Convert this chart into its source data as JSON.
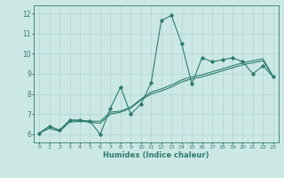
{
  "xlabel": "Humidex (Indice chaleur)",
  "xlim": [
    -0.5,
    23.5
  ],
  "ylim": [
    5.6,
    12.4
  ],
  "xticks": [
    0,
    1,
    2,
    3,
    4,
    5,
    6,
    7,
    8,
    9,
    10,
    11,
    12,
    13,
    14,
    15,
    16,
    17,
    18,
    19,
    20,
    21,
    22,
    23
  ],
  "yticks": [
    6,
    7,
    8,
    9,
    10,
    11,
    12
  ],
  "line_color": "#2d7d6f",
  "bg_color": "#cce8e5",
  "grid_color": "#afd4d0",
  "line1_x": [
    0,
    1,
    2,
    3,
    4,
    5,
    6,
    7,
    8,
    9,
    10,
    11,
    12,
    13,
    14,
    15,
    16,
    17,
    18,
    19,
    20,
    21,
    22,
    23
  ],
  "line1_y": [
    6.05,
    6.4,
    6.2,
    6.7,
    6.7,
    6.65,
    6.0,
    7.3,
    8.35,
    7.0,
    7.5,
    8.55,
    11.65,
    11.9,
    10.5,
    8.5,
    9.8,
    9.6,
    9.7,
    9.8,
    9.6,
    9.0,
    9.4,
    8.85
  ],
  "line2_x": [
    0,
    1,
    2,
    3,
    4,
    5,
    6,
    7,
    8,
    9,
    10,
    11,
    12,
    13,
    14,
    15,
    16,
    17,
    18,
    19,
    20,
    21,
    22,
    23
  ],
  "line2_y": [
    6.05,
    6.4,
    6.2,
    6.7,
    6.7,
    6.65,
    6.65,
    7.1,
    7.15,
    7.35,
    7.75,
    8.1,
    8.25,
    8.45,
    8.7,
    8.85,
    8.95,
    9.1,
    9.25,
    9.4,
    9.55,
    9.65,
    9.75,
    8.85
  ],
  "line3_x": [
    0,
    1,
    2,
    3,
    4,
    5,
    6,
    7,
    8,
    9,
    10,
    11,
    12,
    13,
    14,
    15,
    16,
    17,
    18,
    19,
    20,
    21,
    22,
    23
  ],
  "line3_y": [
    6.05,
    6.3,
    6.15,
    6.6,
    6.65,
    6.6,
    6.55,
    7.0,
    7.1,
    7.3,
    7.7,
    8.0,
    8.15,
    8.35,
    8.6,
    8.75,
    8.85,
    9.0,
    9.15,
    9.3,
    9.45,
    9.55,
    9.65,
    8.85
  ]
}
